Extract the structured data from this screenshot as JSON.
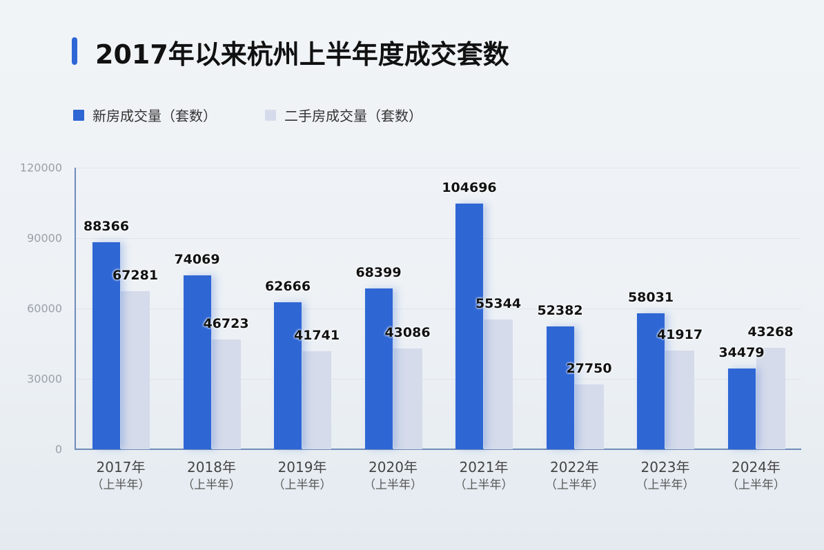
{
  "title": "2017年以来杭州上半年度成交套数",
  "legend": [
    {
      "label": "新房成交量（套数）",
      "color": "#2e66d4"
    },
    {
      "label": "二手房成交量（套数）",
      "color": "#d5dbea"
    }
  ],
  "y_ticks": [
    "120000",
    "90000",
    "60000",
    "30000",
    "0"
  ],
  "x_labels": [
    {
      "year": "2017年",
      "sub": "（上半年）"
    },
    {
      "year": "2018年",
      "sub": "（上半年）"
    },
    {
      "year": "2019年",
      "sub": "（上半年）"
    },
    {
      "year": "2020年",
      "sub": "（上半年）"
    },
    {
      "year": "2021年",
      "sub": "（上半年）"
    },
    {
      "year": "2022年",
      "sub": "（上半年）"
    },
    {
      "year": "2023年",
      "sub": "（上半年）"
    },
    {
      "year": "2024年",
      "sub": "（上半年）"
    }
  ],
  "chart_data": {
    "type": "bar",
    "title": "2017年以来杭州上半年度成交套数",
    "categories": [
      "2017年（上半年）",
      "2018年（上半年）",
      "2019年（上半年）",
      "2020年（上半年）",
      "2021年（上半年）",
      "2022年（上半年）",
      "2023年（上半年）",
      "2024年（上半年）"
    ],
    "series": [
      {
        "name": "新房成交量（套数）",
        "color": "#2e66d4",
        "values": [
          88366,
          74069,
          62666,
          68399,
          104696,
          52382,
          58031,
          34479
        ]
      },
      {
        "name": "二手房成交量（套数）",
        "color": "#d5dbea",
        "values": [
          67281,
          46723,
          41741,
          43086,
          55344,
          27750,
          41917,
          43268
        ]
      }
    ],
    "xlabel": "",
    "ylabel": "",
    "ylim": [
      0,
      120000
    ],
    "yticks": [
      0,
      30000,
      60000,
      90000,
      120000
    ],
    "grid": true,
    "legend_position": "top-left",
    "data_labels": true
  }
}
